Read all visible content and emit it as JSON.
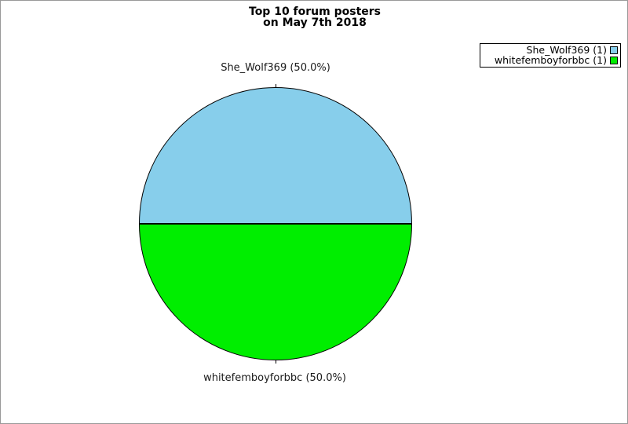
{
  "header": {
    "title_line1": "Top 10 forum posters",
    "title_line2": "on May 7th 2018"
  },
  "chart_data": {
    "type": "pie",
    "title": "Top 10 forum posters on May 7th 2018",
    "labels": [
      "She_Wolf369",
      "whitefemboyforbbc"
    ],
    "values": [
      1,
      1
    ],
    "percentages": [
      50.0,
      50.0
    ],
    "colors": [
      "#87CEEB",
      "#00EE00"
    ],
    "slice_labels": [
      "She_Wolf369 (50.0%)",
      "whitefemboyforbbc (50.0%)"
    ],
    "legend": {
      "position": "top-right",
      "entries": [
        {
          "label": "She_Wolf369 (1)",
          "color": "#87CEEB"
        },
        {
          "label": "whitefemboyforbbc (1)",
          "color": "#00EE00"
        }
      ]
    },
    "layout": {
      "slice1_position": "top half",
      "slice2_position": "bottom half",
      "outline_color": "#000000",
      "canvas_border_color": "#999999",
      "background": "#FFFFFF"
    }
  }
}
